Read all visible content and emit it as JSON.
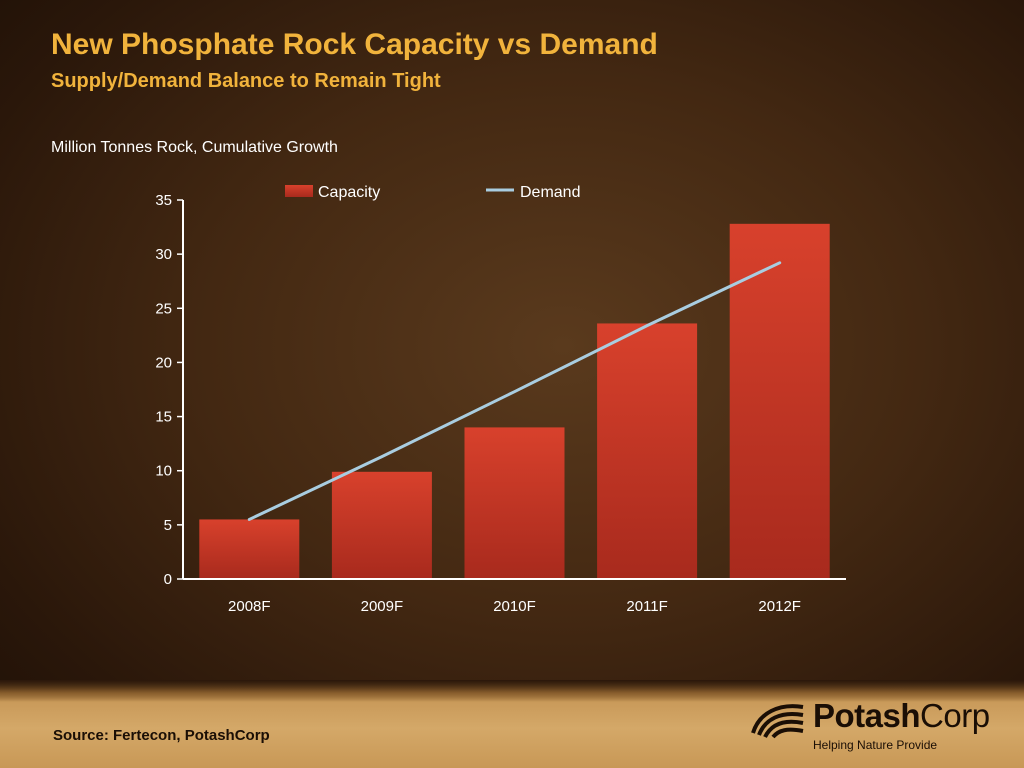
{
  "slide": {
    "title": "New Phosphate Rock Capacity vs Demand",
    "subtitle": "Supply/Demand Balance to Remain Tight",
    "units_label": "Million Tonnes Rock, Cumulative Growth",
    "source": "Source: Fertecon, PotashCorp"
  },
  "logo": {
    "name_bold": "Potash",
    "name_light": "Corp",
    "tagline": "Helping Nature Provide"
  },
  "colors": {
    "capacity_bar": "#c9392a",
    "demand_line": "#a9cde0",
    "axis": "#ffffff",
    "title": "#f1b33c"
  },
  "chart_data": {
    "type": "bar",
    "categories": [
      "2008F",
      "2009F",
      "2010F",
      "2011F",
      "2012F"
    ],
    "series": [
      {
        "name": "Capacity",
        "type": "bar",
        "values": [
          5.5,
          9.9,
          14.0,
          23.6,
          32.8
        ]
      },
      {
        "name": "Demand",
        "type": "line",
        "values": [
          5.5,
          11.3,
          17.3,
          23.4,
          29.2
        ]
      }
    ],
    "ylim": [
      0,
      35
    ],
    "yticks": [
      0,
      5,
      10,
      15,
      20,
      25,
      30,
      35
    ],
    "legend": "top",
    "grid": false
  }
}
